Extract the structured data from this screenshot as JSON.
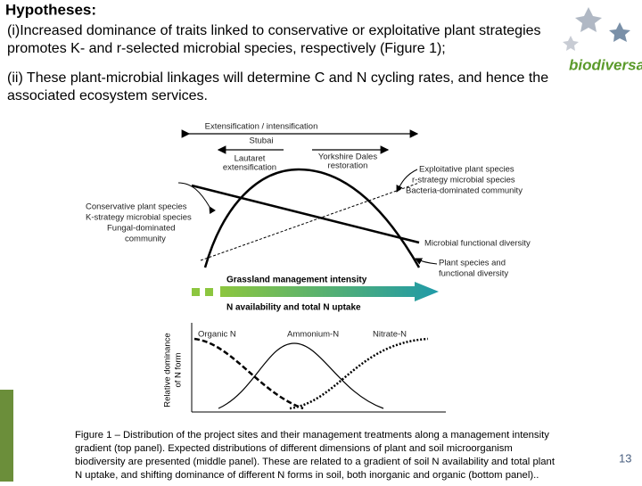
{
  "header": {
    "title": "Hypotheses:"
  },
  "hypotheses": [
    [
      "(i)Increased dominance of traits linked to conservative or exploitative plant strategies",
      "promotes K- and r-selected microbial species, respectively (Figure 1);"
    ],
    [
      "(ii) These plant-microbial linkages will determine C and N cycling rates, and hence the",
      "associated ecosystem services."
    ]
  ],
  "logo": "biodiversa",
  "figure": {
    "stubai": "Stubai",
    "gradient_axis": "Extensification / intensification",
    "lautaret": [
      "Lautaret",
      "extensification"
    ],
    "yorkshire": [
      "Yorkshire Dales",
      "restoration"
    ],
    "exploitative": [
      "Exploitative plant species",
      "r-strategy microbial species",
      "Bacteria-dominated community"
    ],
    "conservative": [
      "Conservative plant species",
      "K-strategy microbial species",
      "Fungal-dominated",
      "community"
    ],
    "microbial_diversity": "Microbial functional diversity",
    "plant_diversity": [
      "Plant species and",
      "functional diversity"
    ],
    "management": "Grassland management intensity",
    "n_availability": "N availability and total N uptake",
    "y_axis": [
      "Relative dominance",
      "of N form"
    ],
    "organic_n": "Organic N",
    "ammonium_n": "Ammonium-N",
    "nitrate_n": "Nitrate-N"
  },
  "caption": [
    "Figure 1 – Distribution of the project sites and their management treatments along a management intensity",
    "gradient (top panel). Expected distributions of different dimensions of plant and soil microorganism",
    "biodiversity are presented (middle panel). These are related to a gradient of soil N availability and total plant",
    "N uptake, and shifting dominance of different N forms in soil, both inorganic and organic (bottom panel).."
  ],
  "page_number": "13"
}
